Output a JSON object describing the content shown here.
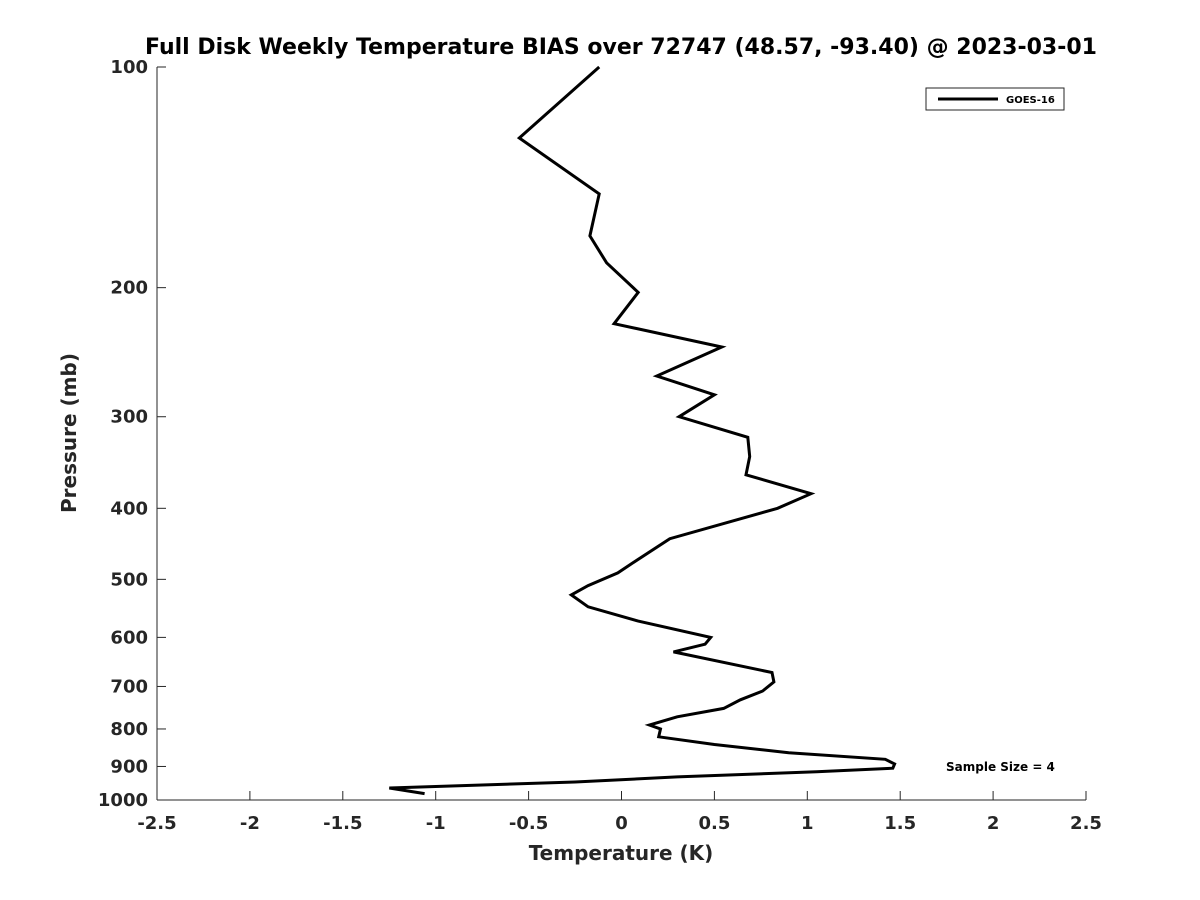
{
  "chart_data": {
    "type": "line",
    "title": "Full Disk Weekly Temperature BIAS over 72747 (48.57, -93.40) @ 2023-03-01",
    "xlabel": "Temperature (K)",
    "ylabel": "Pressure (mb)",
    "xlim": [
      -2.5,
      2.5
    ],
    "ylim": [
      100,
      1000
    ],
    "y_scale": "log",
    "y_reversed": true,
    "grid": false,
    "x_ticks": [
      "-2.5",
      "-2",
      "-1.5",
      "-1",
      "-0.5",
      "0",
      "0.5",
      "1",
      "1.5",
      "2",
      "2.5"
    ],
    "y_ticks": [
      "100",
      "200",
      "300",
      "400",
      "500",
      "600",
      "700",
      "800",
      "900",
      "1000"
    ],
    "legend_position": "top-right",
    "annotation": "Sample Size = 4",
    "series": [
      {
        "name": "GOES-16",
        "color": "#000000",
        "points": [
          [
            -0.12,
            100
          ],
          [
            -0.55,
            125
          ],
          [
            -0.12,
            149
          ],
          [
            -0.17,
            170
          ],
          [
            -0.08,
            185
          ],
          [
            0.09,
            203
          ],
          [
            -0.04,
            224
          ],
          [
            0.54,
            241
          ],
          [
            0.19,
            264
          ],
          [
            0.5,
            280
          ],
          [
            0.31,
            300
          ],
          [
            0.68,
            320
          ],
          [
            0.69,
            340
          ],
          [
            0.67,
            360
          ],
          [
            1.02,
            382
          ],
          [
            0.84,
            400
          ],
          [
            0.26,
            440
          ],
          [
            0.06,
            475
          ],
          [
            -0.02,
            490
          ],
          [
            -0.18,
            510
          ],
          [
            -0.27,
            525
          ],
          [
            -0.18,
            545
          ],
          [
            0.09,
            570
          ],
          [
            0.48,
            600
          ],
          [
            0.45,
            613
          ],
          [
            0.28,
            628
          ],
          [
            0.81,
            670
          ],
          [
            0.82,
            690
          ],
          [
            0.76,
            710
          ],
          [
            0.64,
            730
          ],
          [
            0.55,
            750
          ],
          [
            0.3,
            770
          ],
          [
            0.15,
            790
          ],
          [
            0.21,
            800
          ],
          [
            0.2,
            820
          ],
          [
            0.5,
            840
          ],
          [
            0.9,
            862
          ],
          [
            1.42,
            880
          ],
          [
            1.47,
            893
          ],
          [
            1.46,
            905
          ],
          [
            1.05,
            915
          ],
          [
            0.3,
            930
          ],
          [
            -0.25,
            945
          ],
          [
            -1.25,
            963
          ],
          [
            -1.06,
            980
          ]
        ]
      }
    ]
  }
}
